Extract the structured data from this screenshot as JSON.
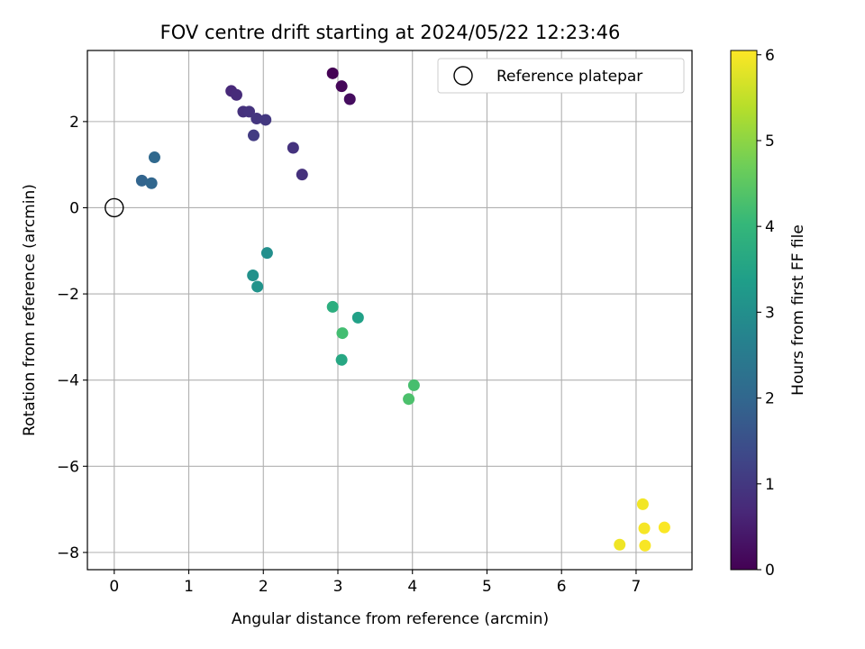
{
  "chart_data": {
    "type": "scatter",
    "title": "FOV centre drift starting at 2024/05/22 12:23:46",
    "xlabel": "Angular distance from reference (arcmin)",
    "ylabel": "Rotation from reference (arcmin)",
    "xlim": [
      -0.36,
      7.75
    ],
    "ylim": [
      -8.4,
      3.65
    ],
    "xticks": [
      0,
      1,
      2,
      3,
      4,
      5,
      6,
      7
    ],
    "xtick_labels": [
      "0",
      "1",
      "2",
      "3",
      "4",
      "5",
      "6",
      "7"
    ],
    "yticks": [
      2,
      0,
      -2,
      -4,
      -6,
      -8
    ],
    "ytick_labels": [
      "2",
      "0",
      "−2",
      "−4",
      "−6",
      "−8"
    ],
    "grid": true,
    "legend": {
      "position": "top-right",
      "entries": [
        "Reference platepar"
      ]
    },
    "reference_point": {
      "x": 0,
      "y": 0,
      "marker": "open-circle",
      "color": "#000000"
    },
    "colormap": "viridis",
    "colorbar": {
      "label": "Hours from first FF file",
      "range": [
        0,
        6.05
      ],
      "ticks": [
        0,
        1,
        2,
        3,
        4,
        5,
        6
      ],
      "tick_labels": [
        "0",
        "1",
        "2",
        "3",
        "4",
        "5",
        "6"
      ],
      "stops": [
        "#440154",
        "#482878",
        "#3e4989",
        "#31688e",
        "#26828e",
        "#1f9e89",
        "#35b779",
        "#6ece58",
        "#b5de2b",
        "#fde725"
      ]
    },
    "series": [
      {
        "points": [
          {
            "x": 2.93,
            "y": 3.12,
            "c": 0.0
          },
          {
            "x": 3.05,
            "y": 2.82,
            "c": 0.1
          },
          {
            "x": 3.16,
            "y": 2.52,
            "c": 0.2
          },
          {
            "x": 1.57,
            "y": 2.71,
            "c": 0.7
          },
          {
            "x": 1.64,
            "y": 2.62,
            "c": 0.75
          },
          {
            "x": 1.73,
            "y": 2.23,
            "c": 0.85
          },
          {
            "x": 1.81,
            "y": 2.23,
            "c": 0.9
          },
          {
            "x": 1.91,
            "y": 2.07,
            "c": 0.95
          },
          {
            "x": 2.03,
            "y": 2.04,
            "c": 1.0
          },
          {
            "x": 1.87,
            "y": 1.68,
            "c": 1.05
          },
          {
            "x": 2.4,
            "y": 1.39,
            "c": 0.9
          },
          {
            "x": 2.52,
            "y": 0.77,
            "c": 0.85
          },
          {
            "x": 0.54,
            "y": 1.17,
            "c": 2.05
          },
          {
            "x": 0.37,
            "y": 0.63,
            "c": 1.95
          },
          {
            "x": 0.5,
            "y": 0.57,
            "c": 2.0
          },
          {
            "x": 2.05,
            "y": -1.05,
            "c": 3.0
          },
          {
            "x": 1.86,
            "y": -1.57,
            "c": 3.05
          },
          {
            "x": 1.92,
            "y": -1.83,
            "c": 3.1
          },
          {
            "x": 2.93,
            "y": -2.3,
            "c": 3.8
          },
          {
            "x": 3.27,
            "y": -2.55,
            "c": 3.45
          },
          {
            "x": 3.06,
            "y": -2.91,
            "c": 4.2
          },
          {
            "x": 3.05,
            "y": -3.53,
            "c": 3.6
          },
          {
            "x": 4.02,
            "y": -4.12,
            "c": 4.25
          },
          {
            "x": 3.95,
            "y": -4.44,
            "c": 4.3
          },
          {
            "x": 7.09,
            "y": -6.88,
            "c": 5.95
          },
          {
            "x": 7.11,
            "y": -7.44,
            "c": 5.98
          },
          {
            "x": 7.38,
            "y": -7.42,
            "c": 6.02
          },
          {
            "x": 6.78,
            "y": -7.82,
            "c": 5.92
          },
          {
            "x": 7.12,
            "y": -7.84,
            "c": 6.0
          }
        ]
      }
    ]
  }
}
